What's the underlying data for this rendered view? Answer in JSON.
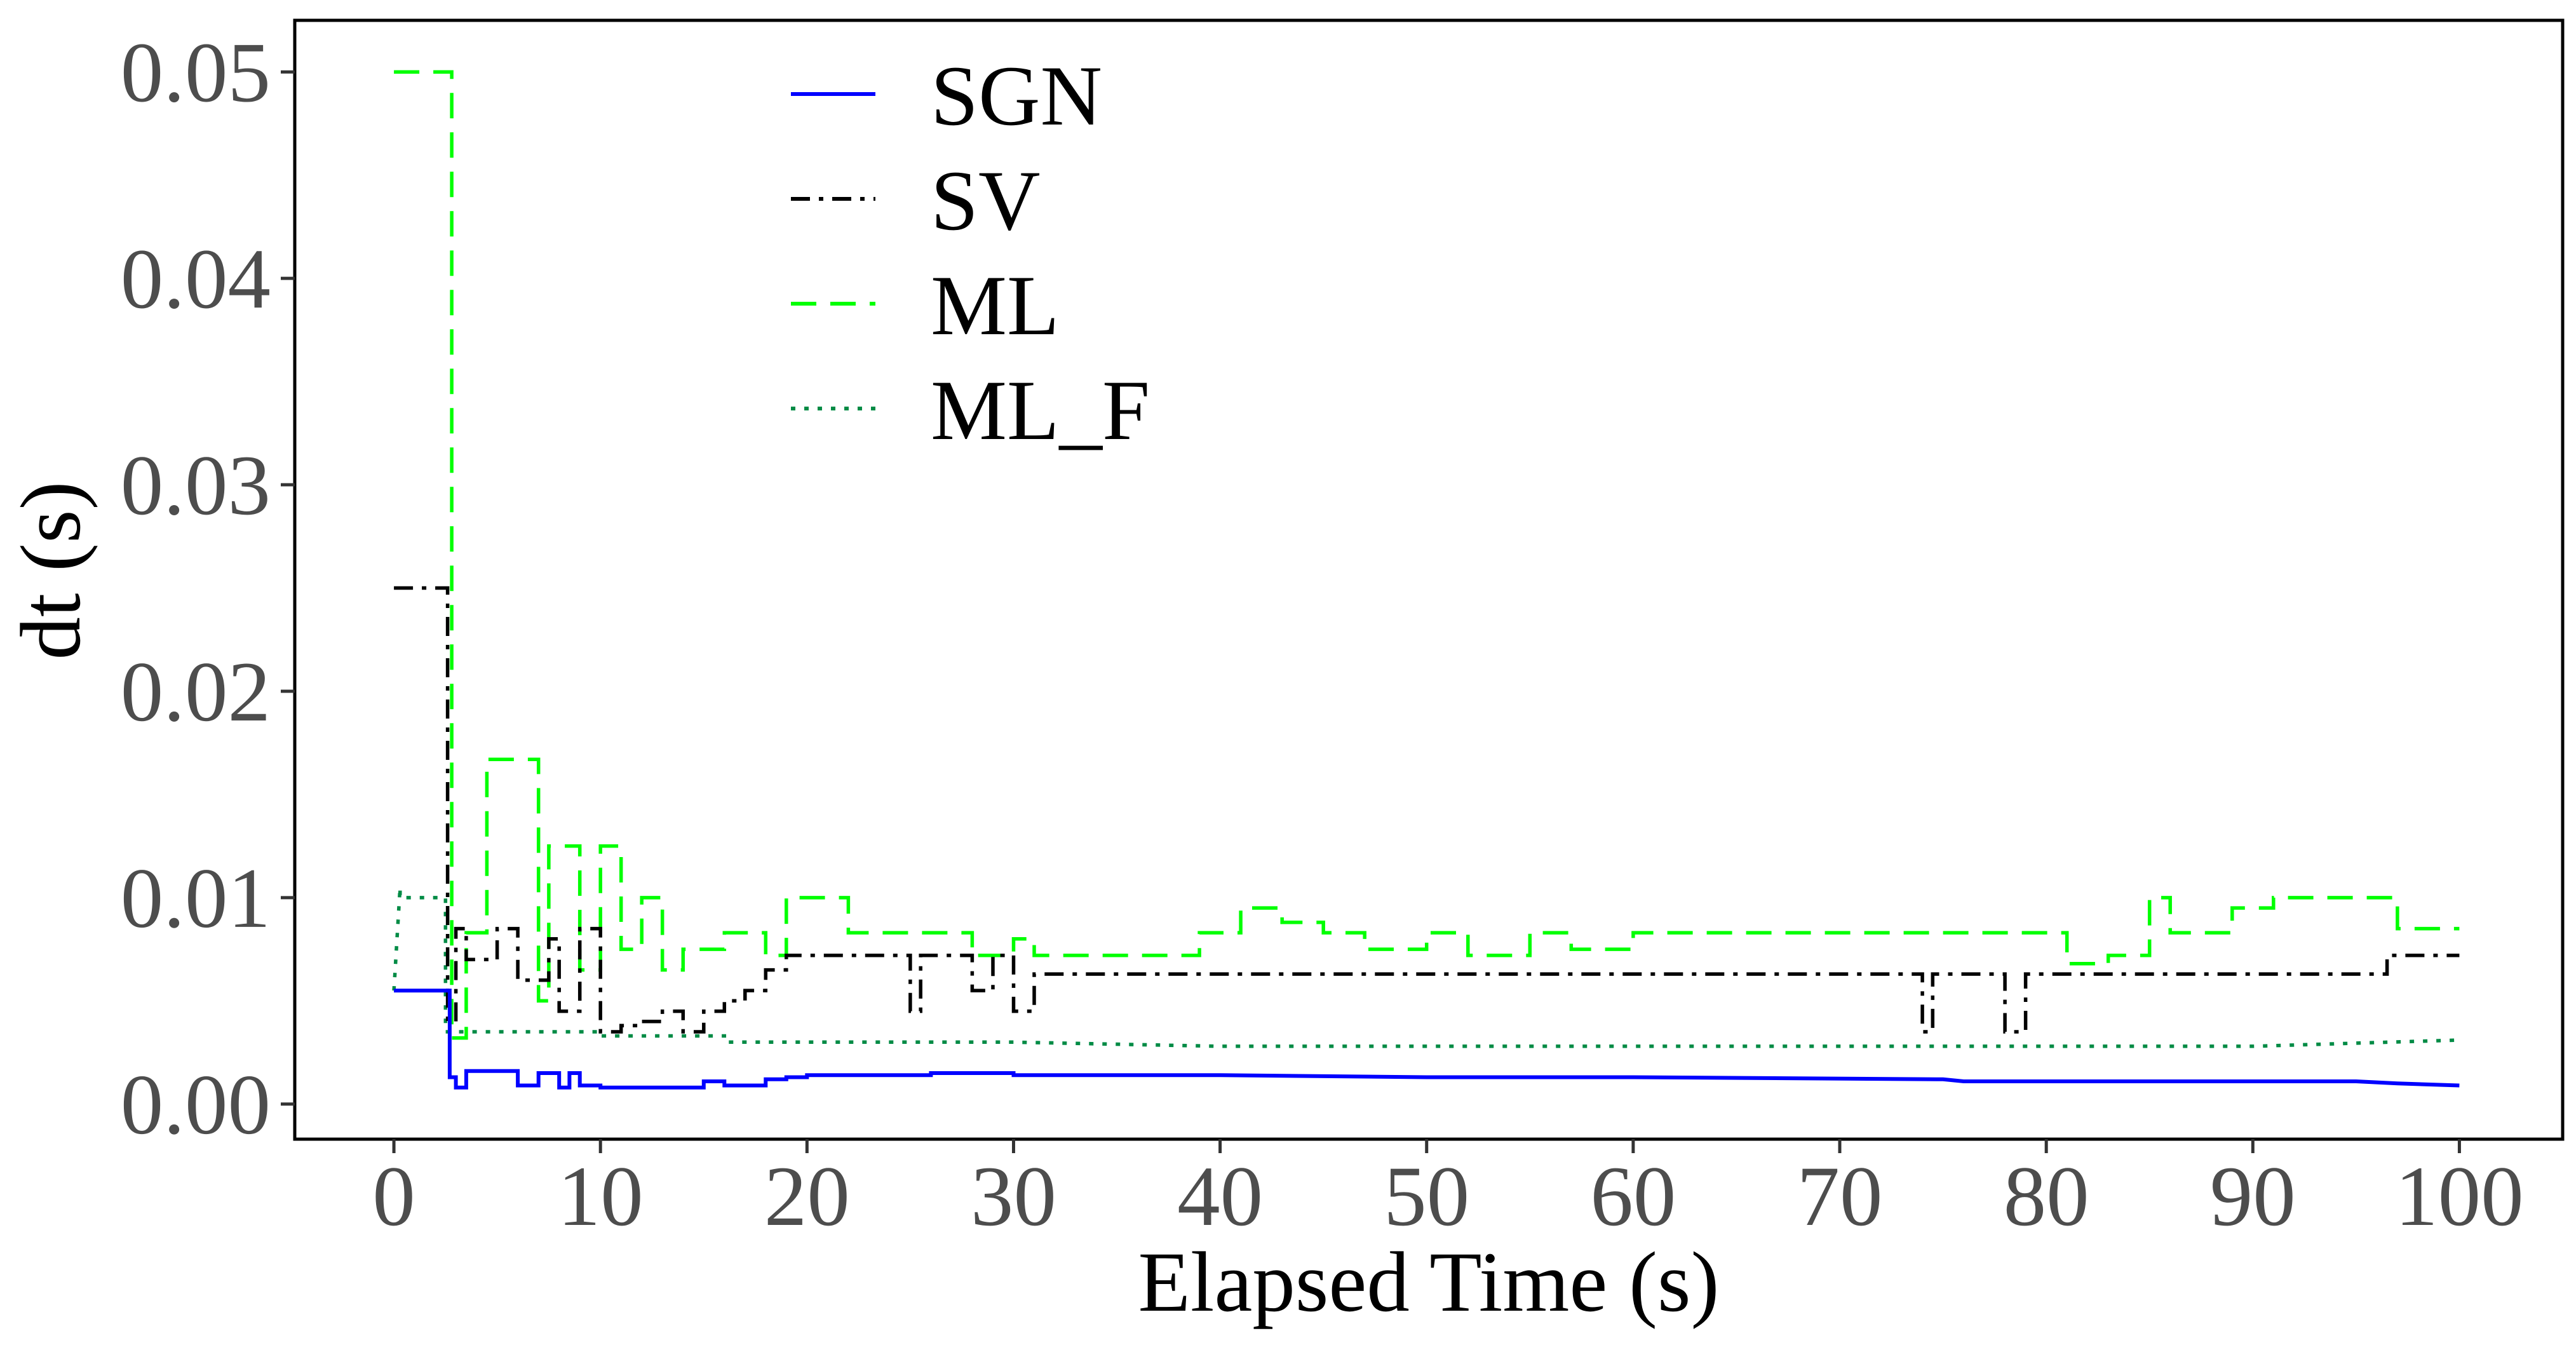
{
  "chart_data": {
    "type": "line",
    "title": "",
    "xlabel": "Elapsed Time (s)",
    "ylabel": "dt (s)",
    "xlim": [
      -4.8,
      105
    ],
    "ylim": [
      -0.0017,
      0.0525
    ],
    "xticks": [
      0,
      10,
      20,
      30,
      40,
      50,
      60,
      70,
      80,
      90,
      100
    ],
    "xtick_labels": [
      "0",
      "10",
      "20",
      "30",
      "40",
      "50",
      "60",
      "70",
      "80",
      "90",
      "100"
    ],
    "yticks": [
      0,
      0.01,
      0.02,
      0.03,
      0.04,
      0.05
    ],
    "ytick_labels": [
      "0.00",
      "0.01",
      "0.02",
      "0.03",
      "0.04",
      "0.05"
    ],
    "grid": false,
    "legend": {
      "position": "top-left"
    },
    "series": [
      {
        "name": "SGN",
        "color": "#0000ff",
        "dash": "solid",
        "x": [
          0,
          2.7,
          2.7,
          3,
          3,
          3.5,
          3.5,
          6,
          6,
          7,
          7,
          8,
          8,
          8.5,
          8.5,
          9,
          9,
          10,
          10,
          15,
          15,
          16,
          16,
          18,
          18,
          19,
          19,
          20,
          20,
          26,
          26,
          30,
          30,
          40,
          50,
          60,
          75,
          75,
          76,
          85,
          95,
          97,
          100
        ],
        "y": [
          0.0055,
          0.0055,
          0.0013,
          0.0013,
          0.0008,
          0.0008,
          0.0016,
          0.0016,
          0.0009,
          0.0009,
          0.0015,
          0.0015,
          0.0008,
          0.0008,
          0.0015,
          0.0015,
          0.0009,
          0.0009,
          0.0008,
          0.0008,
          0.0011,
          0.0011,
          0.0009,
          0.0009,
          0.0012,
          0.0012,
          0.0013,
          0.0013,
          0.0014,
          0.0014,
          0.0015,
          0.0015,
          0.0014,
          0.0014,
          0.0013,
          0.0013,
          0.0012,
          0.0012,
          0.0011,
          0.0011,
          0.0011,
          0.001,
          0.0009
        ]
      },
      {
        "name": "SV",
        "color": "#000000",
        "dash": "dashdot",
        "x": [
          0,
          2.6,
          2.6,
          3,
          3,
          3.5,
          3.5,
          5,
          5,
          6,
          6,
          7.5,
          7.5,
          8,
          8,
          9,
          9,
          10,
          10,
          11,
          11,
          12,
          12,
          13,
          13,
          14,
          14,
          15,
          15,
          16,
          16,
          17,
          17,
          18,
          18,
          19,
          19,
          25,
          25,
          25.5,
          25.5,
          28,
          28,
          29,
          29,
          30,
          30,
          31,
          31,
          74,
          74,
          74.5,
          74.5,
          78,
          78,
          79,
          79,
          96.5,
          96.5,
          100
        ],
        "y": [
          0.025,
          0.025,
          0.004,
          0.004,
          0.0085,
          0.0085,
          0.007,
          0.007,
          0.0085,
          0.0085,
          0.006,
          0.006,
          0.008,
          0.008,
          0.0045,
          0.0045,
          0.0085,
          0.0085,
          0.0035,
          0.0035,
          0.0038,
          0.0038,
          0.004,
          0.004,
          0.0045,
          0.0045,
          0.0035,
          0.0035,
          0.0045,
          0.0045,
          0.005,
          0.005,
          0.0055,
          0.0055,
          0.0065,
          0.0065,
          0.0072,
          0.0072,
          0.0045,
          0.0045,
          0.0072,
          0.0072,
          0.0055,
          0.0055,
          0.0072,
          0.0072,
          0.0045,
          0.0045,
          0.0063,
          0.0063,
          0.0035,
          0.0035,
          0.0063,
          0.0063,
          0.0035,
          0.0035,
          0.0063,
          0.0063,
          0.0072,
          0.0072
        ]
      },
      {
        "name": "ML",
        "color": "#00ff00",
        "dash": "dashed",
        "x": [
          0,
          2.8,
          2.8,
          3.5,
          3.5,
          4.5,
          4.5,
          7,
          7,
          7.5,
          7.5,
          9,
          9,
          10,
          10,
          11,
          11,
          12,
          12,
          13,
          13,
          14,
          14,
          16,
          16,
          18,
          18,
          19,
          19,
          22,
          22,
          28,
          28,
          30,
          30,
          31,
          31,
          39,
          39,
          41,
          41,
          43,
          43,
          45,
          45,
          47,
          47,
          50,
          50,
          52,
          52,
          55,
          55,
          57,
          57,
          60,
          60,
          65,
          65,
          70,
          70,
          75,
          75,
          81,
          81,
          83,
          83,
          85,
          85,
          86,
          86,
          89,
          89,
          91,
          91,
          97,
          97,
          100
        ],
        "y": [
          0.05,
          0.05,
          0.0032,
          0.0032,
          0.0083,
          0.0083,
          0.0167,
          0.0167,
          0.005,
          0.005,
          0.0125,
          0.0125,
          0.0065,
          0.0065,
          0.0125,
          0.0125,
          0.0075,
          0.0075,
          0.01,
          0.01,
          0.0065,
          0.0065,
          0.0075,
          0.0075,
          0.0083,
          0.0083,
          0.0072,
          0.0072,
          0.01,
          0.01,
          0.0083,
          0.0083,
          0.0072,
          0.0072,
          0.008,
          0.008,
          0.0072,
          0.0072,
          0.0083,
          0.0083,
          0.0095,
          0.0095,
          0.0088,
          0.0088,
          0.0083,
          0.0083,
          0.0075,
          0.0075,
          0.0083,
          0.0083,
          0.0072,
          0.0072,
          0.0083,
          0.0083,
          0.0075,
          0.0075,
          0.0083,
          0.0083,
          0.0083,
          0.0083,
          0.0083,
          0.0083,
          0.0083,
          0.0083,
          0.0068,
          0.0068,
          0.0072,
          0.0072,
          0.01,
          0.01,
          0.0083,
          0.0083,
          0.0095,
          0.0095,
          0.01,
          0.01,
          0.0085,
          0.0085
        ]
      },
      {
        "name": "ML_F",
        "color": "#008b45",
        "dash": "dotted",
        "x": [
          0,
          0.3,
          0.3,
          2.5,
          2.5,
          10,
          10,
          16,
          16,
          20,
          30,
          40,
          50,
          60,
          70,
          80,
          90,
          100
        ],
        "y": [
          0.0055,
          0.0105,
          0.01,
          0.01,
          0.0035,
          0.0035,
          0.0033,
          0.0033,
          0.003,
          0.003,
          0.003,
          0.0028,
          0.0028,
          0.0028,
          0.0028,
          0.0028,
          0.0028,
          0.0031
        ]
      }
    ]
  }
}
